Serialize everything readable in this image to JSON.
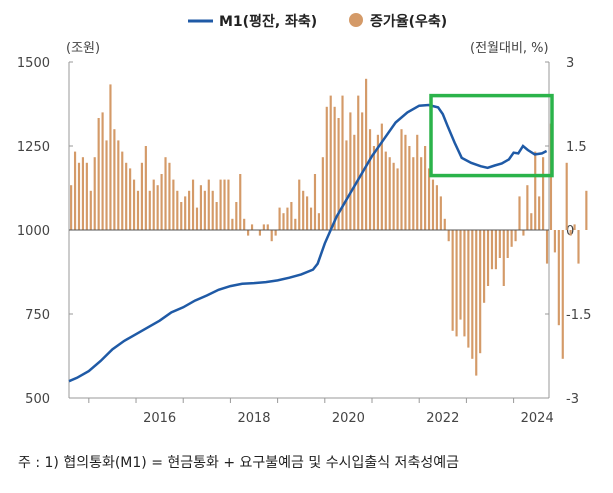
{
  "chart_data": {
    "type": "bar+line",
    "left_axis_unit": "(조원)",
    "right_axis_unit": "(전월대비, %)",
    "left_ylim": [
      500,
      1500
    ],
    "left_yticks": [
      500,
      750,
      1000,
      1250,
      1500
    ],
    "right_ylim": [
      -3,
      3
    ],
    "right_yticks": [
      "-3",
      "-1.5",
      "0",
      "1.5",
      "3"
    ],
    "xlim": [
      2014.58,
      2024.75
    ],
    "xticks": [
      "2016",
      "2018",
      "2020",
      "2022",
      "2024"
    ],
    "legend": {
      "line_label": "M1(평잔, 좌축)",
      "bar_label": "증가율(우축)",
      "placement": "top-center"
    },
    "colors": {
      "line": "#1f5aa6",
      "bar": "#d49a68",
      "highlight": "#2bb34a",
      "axis": "#999999"
    },
    "highlight_box": {
      "x_range": [
        2022.25,
        2024.75
      ],
      "left_y_range": [
        1162,
        1400
      ]
    },
    "line_series": {
      "name": "M1(평잔, 좌축)",
      "points": [
        [
          2014.58,
          550
        ],
        [
          2014.75,
          560
        ],
        [
          2015.0,
          580
        ],
        [
          2015.25,
          610
        ],
        [
          2015.5,
          645
        ],
        [
          2015.75,
          670
        ],
        [
          2016.0,
          690
        ],
        [
          2016.25,
          710
        ],
        [
          2016.5,
          730
        ],
        [
          2016.75,
          755
        ],
        [
          2017.0,
          770
        ],
        [
          2017.25,
          790
        ],
        [
          2017.5,
          805
        ],
        [
          2017.75,
          822
        ],
        [
          2018.0,
          833
        ],
        [
          2018.25,
          840
        ],
        [
          2018.5,
          842
        ],
        [
          2018.75,
          845
        ],
        [
          2019.0,
          850
        ],
        [
          2019.25,
          858
        ],
        [
          2019.5,
          868
        ],
        [
          2019.75,
          882
        ],
        [
          2019.85,
          900
        ],
        [
          2020.0,
          960
        ],
        [
          2020.25,
          1040
        ],
        [
          2020.5,
          1100
        ],
        [
          2020.75,
          1160
        ],
        [
          2021.0,
          1220
        ],
        [
          2021.25,
          1270
        ],
        [
          2021.5,
          1320
        ],
        [
          2021.75,
          1350
        ],
        [
          2022.0,
          1370
        ],
        [
          2022.2,
          1372
        ],
        [
          2022.4,
          1365
        ],
        [
          2022.5,
          1345
        ],
        [
          2022.6,
          1310
        ],
        [
          2022.75,
          1260
        ],
        [
          2022.9,
          1215
        ],
        [
          2023.1,
          1200
        ],
        [
          2023.3,
          1190
        ],
        [
          2023.45,
          1185
        ],
        [
          2023.6,
          1192
        ],
        [
          2023.75,
          1198
        ],
        [
          2023.9,
          1210
        ],
        [
          2024.0,
          1230
        ],
        [
          2024.1,
          1228
        ],
        [
          2024.2,
          1250
        ],
        [
          2024.3,
          1238
        ],
        [
          2024.45,
          1225
        ],
        [
          2024.6,
          1228
        ],
        [
          2024.7,
          1235
        ]
      ]
    },
    "bar_series": {
      "name": "증가율(우축)",
      "monthly_values": [
        0.8,
        1.4,
        1.2,
        1.3,
        1.2,
        0.7,
        1.3,
        2.0,
        2.1,
        1.6,
        2.6,
        1.8,
        1.6,
        1.4,
        1.2,
        1.1,
        0.9,
        0.7,
        1.2,
        1.5,
        0.7,
        0.9,
        0.8,
        1.0,
        1.3,
        1.2,
        0.9,
        0.7,
        0.5,
        0.6,
        0.7,
        0.9,
        0.4,
        0.8,
        0.7,
        0.9,
        0.7,
        0.5,
        0.9,
        0.9,
        0.9,
        0.2,
        0.5,
        1.0,
        0.2,
        -0.1,
        0.1,
        0.0,
        -0.1,
        0.1,
        0.1,
        -0.2,
        -0.1,
        0.4,
        0.3,
        0.4,
        0.5,
        0.2,
        0.9,
        0.7,
        0.6,
        0.4,
        1.0,
        0.3,
        1.3,
        2.2,
        2.4,
        2.2,
        2.0,
        2.4,
        1.6,
        2.1,
        1.7,
        2.4,
        2.1,
        2.7,
        1.8,
        1.5,
        1.7,
        1.9,
        1.4,
        1.3,
        1.2,
        1.1,
        1.8,
        1.7,
        1.5,
        1.3,
        1.7,
        1.3,
        1.5,
        1.1,
        0.9,
        0.8,
        0.6,
        0.2,
        -0.2,
        -1.8,
        -1.9,
        -1.6,
        -1.9,
        -2.1,
        -2.3,
        -2.6,
        -2.2,
        -1.3,
        -1.0,
        -0.7,
        -0.7,
        -0.5,
        -1.0,
        -0.5,
        -0.3,
        -0.2,
        0.6,
        -0.1,
        0.8,
        0.3,
        1.4,
        0.6,
        1.3,
        -0.6,
        1.9,
        -0.4,
        -1.7,
        -2.3,
        1.2,
        -0.1,
        0.1,
        -0.6,
        0.0,
        0.7
      ],
      "start_year": 2014.625
    },
    "note": "주 : 1) 협의통화(M1) = 현금통화 + 요구불예금 및 수시입출식 저축성예금"
  }
}
